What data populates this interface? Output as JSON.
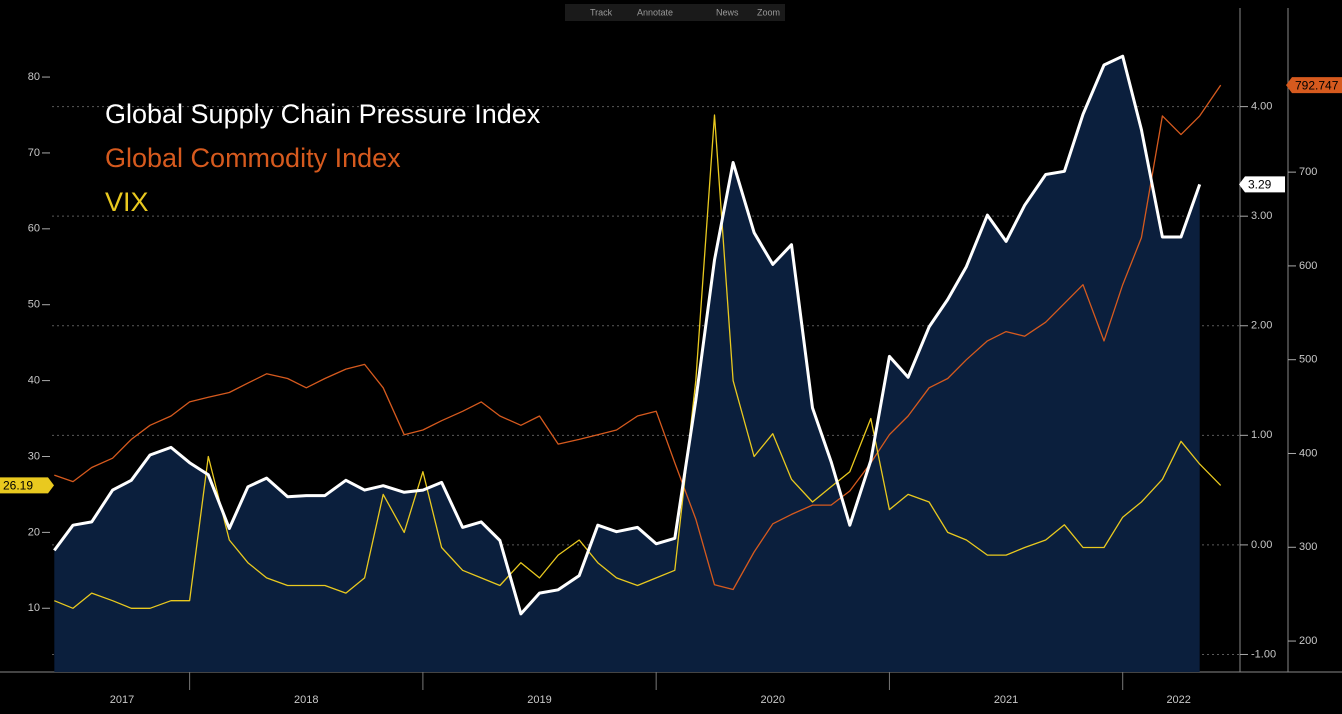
{
  "toolbar": [
    "Track",
    "Annotate",
    "News",
    "Zoom"
  ],
  "chart_data": {
    "type": "line",
    "x": [
      2017.42,
      2017.5,
      2017.58,
      2017.67,
      2017.75,
      2017.83,
      2017.92,
      2018.0,
      2018.08,
      2018.17,
      2018.25,
      2018.33,
      2018.42,
      2018.5,
      2018.58,
      2018.67,
      2018.75,
      2018.83,
      2018.92,
      2019.0,
      2019.08,
      2019.17,
      2019.25,
      2019.33,
      2019.42,
      2019.5,
      2019.58,
      2019.67,
      2019.75,
      2019.83,
      2019.92,
      2020.0,
      2020.08,
      2020.17,
      2020.25,
      2020.33,
      2020.42,
      2020.5,
      2020.58,
      2020.67,
      2020.75,
      2020.83,
      2020.92,
      2021.0,
      2021.08,
      2021.17,
      2021.25,
      2021.33,
      2021.42,
      2021.5,
      2021.58,
      2021.67,
      2021.75,
      2021.83,
      2021.92,
      2022.0,
      2022.08,
      2022.17,
      2022.25,
      2022.33,
      2022.42
    ],
    "xlim": [
      2017.41,
      2022.49
    ],
    "xticks": [
      {
        "value": 2017.71,
        "label": "2017"
      },
      {
        "value": 2018.5,
        "label": "2018"
      },
      {
        "value": 2019.5,
        "label": "2019"
      },
      {
        "value": 2020.5,
        "label": "2020"
      },
      {
        "value": 2021.5,
        "label": "2021"
      },
      {
        "value": 2022.24,
        "label": "2022"
      }
    ],
    "ylim": [
      1.6,
      89.1
    ],
    "yticks": [
      10,
      20,
      30,
      40,
      50,
      60,
      70,
      80
    ],
    "y2lim": [
      -1.16,
      4.9
    ],
    "y2ticks": [
      {
        "value": -1,
        "label": "-1.00"
      },
      {
        "value": 0,
        "label": "0.00"
      },
      {
        "value": 1,
        "label": "1.00"
      },
      {
        "value": 2,
        "label": "2.00"
      },
      {
        "value": 3,
        "label": "3.00"
      },
      {
        "value": 4,
        "label": "4.00"
      }
    ],
    "y3lim": [
      167,
      875
    ],
    "y3ticks": [
      200,
      300,
      400,
      500,
      600,
      700
    ],
    "grid": true,
    "series": [
      {
        "name": "Global Supply Chain Pressure Index",
        "color": "#ffffff",
        "fill": "#0b1f3d",
        "axis": "y2",
        "values": [
          -0.05,
          0.18,
          0.21,
          0.5,
          0.59,
          0.82,
          0.89,
          0.75,
          0.64,
          0.15,
          0.53,
          0.61,
          0.44,
          0.45,
          0.45,
          0.59,
          0.5,
          0.54,
          0.48,
          0.5,
          0.57,
          0.16,
          0.21,
          0.04,
          -0.63,
          -0.44,
          -0.41,
          -0.28,
          0.18,
          0.12,
          0.16,
          0.01,
          0.06,
          1.32,
          2.6,
          3.49,
          2.85,
          2.56,
          2.74,
          1.25,
          0.76,
          0.18,
          0.77,
          1.72,
          1.53,
          1.99,
          2.24,
          2.54,
          3.01,
          2.77,
          3.1,
          3.38,
          3.41,
          3.93,
          4.38,
          4.46,
          3.79,
          2.81,
          2.81,
          3.29,
          null
        ]
      },
      {
        "name": "Global Commodity Index",
        "color": "#d65a1e",
        "axis": "y3",
        "values": [
          377,
          370,
          385,
          395,
          415,
          430,
          440,
          455,
          460,
          465,
          475,
          485,
          480,
          470,
          480,
          490,
          495,
          470,
          420,
          425,
          435,
          445,
          455,
          440,
          430,
          440,
          410,
          415,
          420,
          425,
          440,
          445,
          390,
          330,
          260,
          255,
          295,
          325,
          335,
          345,
          345,
          360,
          390,
          420,
          440,
          470,
          480,
          500,
          520,
          530,
          525,
          540,
          560,
          580,
          520,
          580,
          630,
          760,
          740,
          760,
          792.747
        ]
      },
      {
        "name": "VIX",
        "color": "#e9c91f",
        "axis": "y",
        "values": [
          11,
          10,
          12,
          11,
          10,
          10,
          11,
          11,
          30,
          19,
          16,
          14,
          13,
          13,
          13,
          12,
          14,
          25,
          20,
          28,
          18,
          15,
          14,
          13,
          16,
          14,
          17,
          19,
          16,
          14,
          13,
          14,
          15,
          40,
          75,
          40,
          30,
          33,
          27,
          24,
          26,
          28,
          35,
          23,
          25,
          24,
          20,
          19,
          17,
          17,
          18,
          19,
          21,
          18,
          18,
          22,
          24,
          27,
          32,
          29,
          26.19
        ]
      }
    ]
  }
}
